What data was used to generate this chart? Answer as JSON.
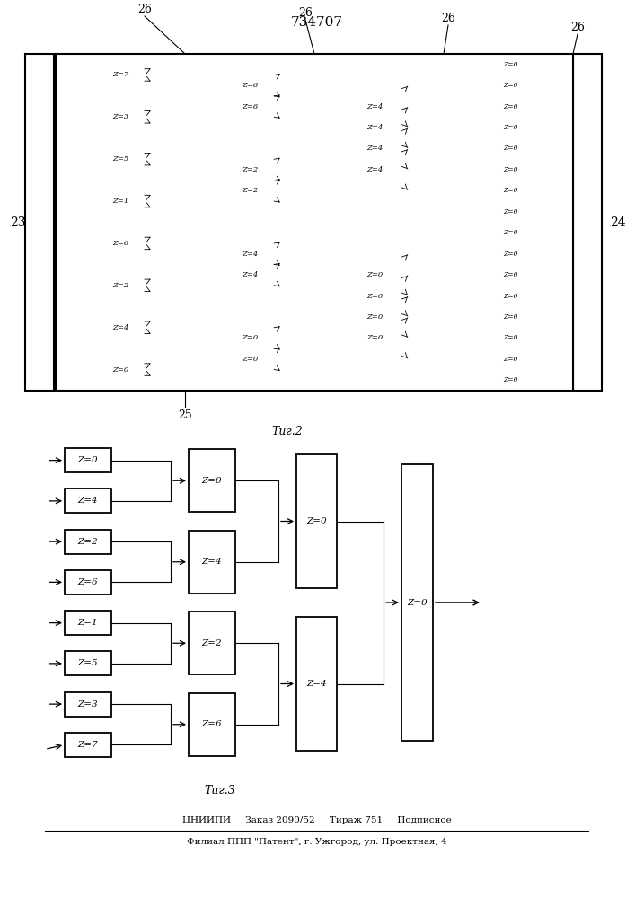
{
  "title": "734707",
  "fig2_label": "Τиг.2",
  "fig3_label": "Τиг.3",
  "footer_line1": "ЦНИИПИ     Заказ 2090/52     Тираж 751     Подписное",
  "footer_line2": "Филиал ППП \"Патент\", г. Ужгород, ул. Проектная, 4",
  "background": "#ffffff",
  "line_color": "#000000",
  "stage0_labels": [
    "Z=0",
    "Z=4",
    "Z=2",
    "Z=6",
    "Z=1",
    "Z=5",
    "Z=3",
    "Z=7"
  ],
  "col1_labels": [
    "Z=0",
    "Z=4",
    "Z=2",
    "Z=6",
    "Z=1",
    "Z=5",
    "Z=3",
    "Z=7"
  ],
  "col2_labels": [
    "Z=0",
    "Z=4",
    "Z=2",
    "Z=6"
  ],
  "col3_labels": [
    "Z=0",
    "Z=4"
  ],
  "col4_label": "Z=0"
}
